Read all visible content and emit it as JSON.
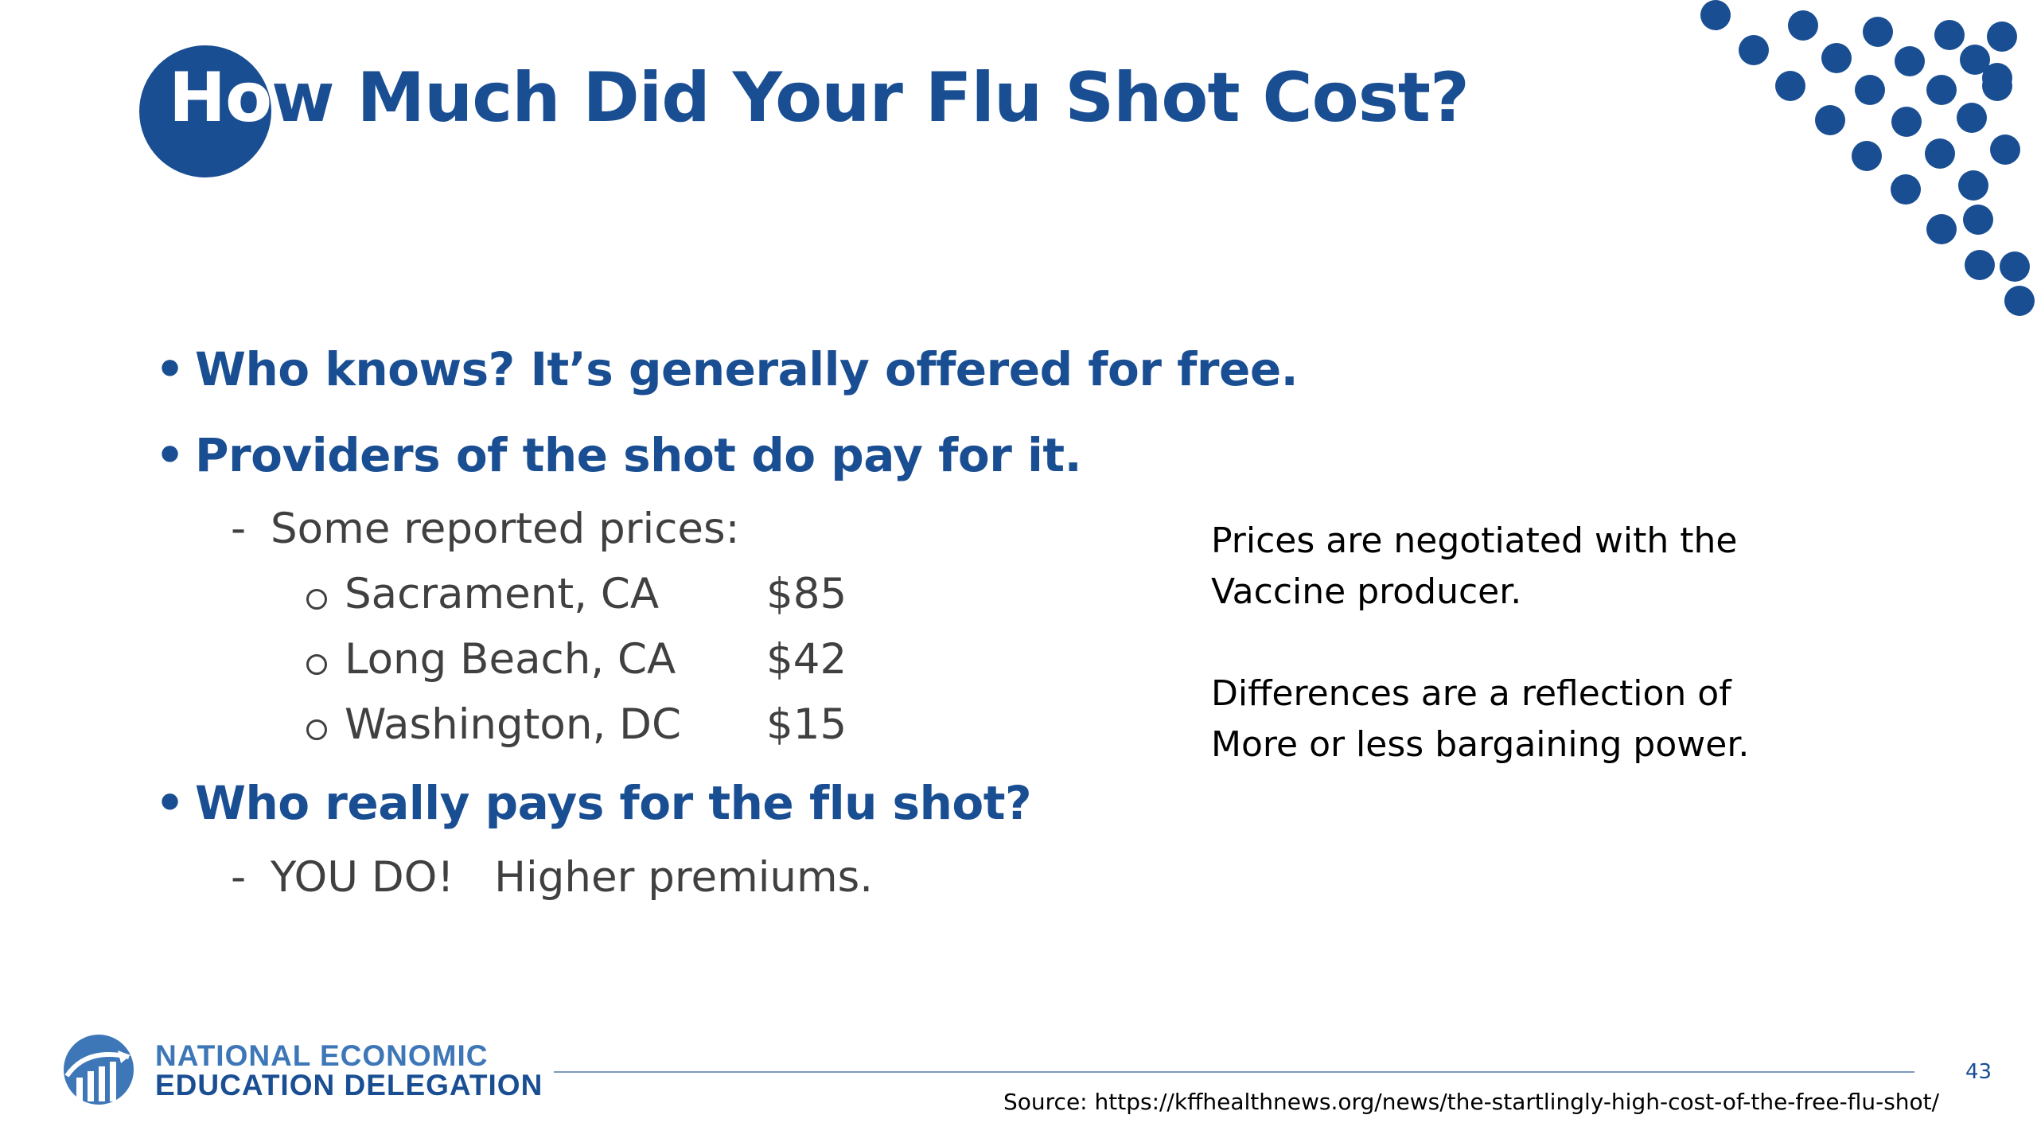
{
  "title": {
    "highlight": "Ho",
    "rest": "w Much Did Your Flu Shot Cost?"
  },
  "bullets": {
    "b1": "Who knows? It’s generally offered for free.",
    "b2": "Providers of the shot do pay for it.",
    "b2_sub": "Some reported prices:",
    "prices": [
      {
        "city": "Sacrament, CA",
        "price": "$85"
      },
      {
        "city": "Long Beach, CA",
        "price": "$42"
      },
      {
        "city": "Washington, DC",
        "price": "$15"
      }
    ],
    "b3": "Who really pays for the flu shot?",
    "b3_sub": "YOU DO!   Higher premiums.",
    "bullet_mark": "•",
    "dash_mark": "-"
  },
  "note": {
    "line1": "Prices are negotiated with the",
    "line2": "Vaccine producer.",
    "line3": "Differences are a reflection of",
    "line4": "More or less bargaining power."
  },
  "footer": {
    "org_line1": "NATIONAL ECONOMIC",
    "org_line2": "EDUCATION DELEGATION",
    "page_number": "43",
    "source": "Source: https://kffhealthnews.org/news/the-startlingly-high-cost-of-the-free-flu-shot/"
  },
  "colors": {
    "brand_blue": "#1a4e93",
    "body_gray": "#404040",
    "logo_light_blue": "#3e77b8"
  },
  "icons": [
    "logo-icon",
    "decorative-dots"
  ]
}
